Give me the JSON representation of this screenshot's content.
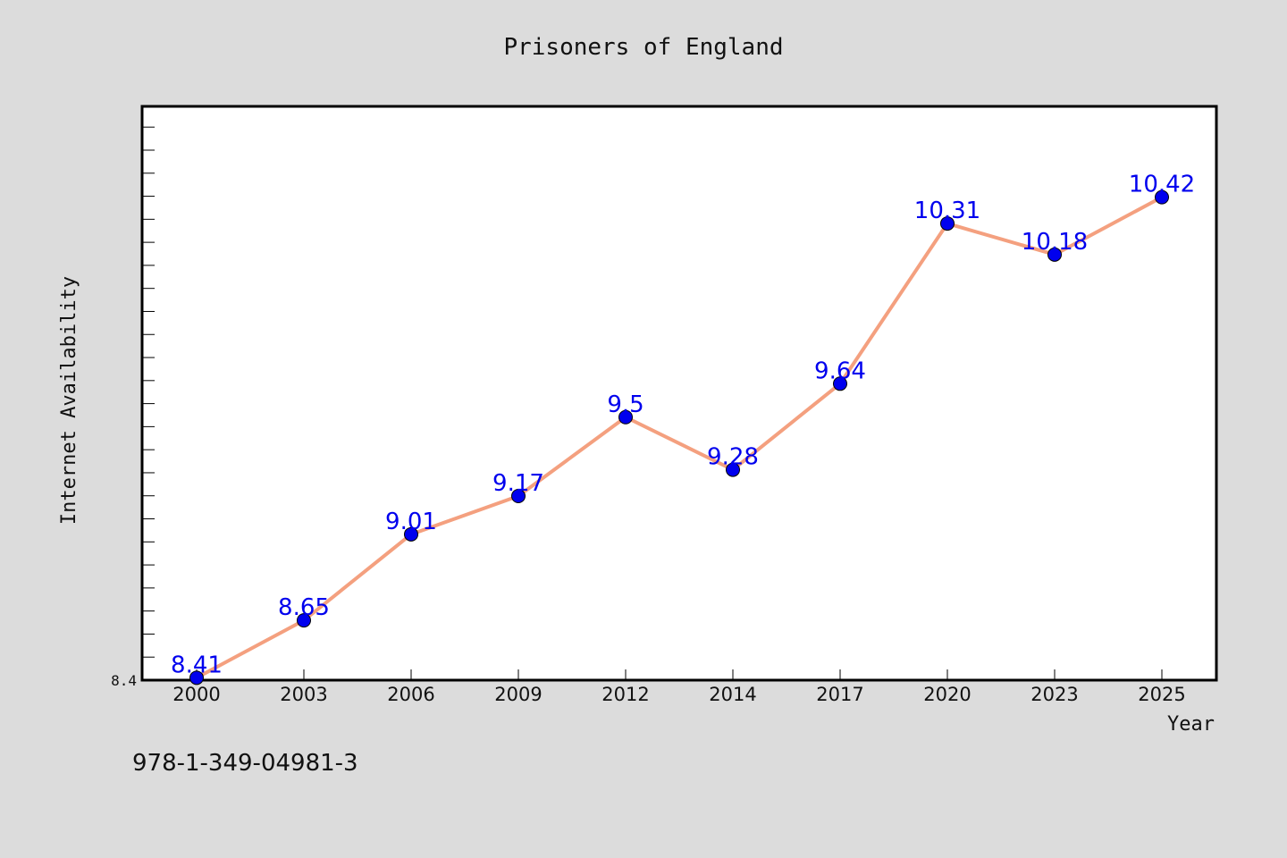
{
  "chart_data": {
    "type": "line",
    "title": "Prisoners of England",
    "xlabel": "Year",
    "ylabel": "Internet Availability",
    "categories": [
      "2000",
      "2003",
      "2006",
      "2009",
      "2012",
      "2014",
      "2017",
      "2020",
      "2023",
      "2025"
    ],
    "series": [
      {
        "values": [
          8.41,
          8.65,
          9.01,
          9.17,
          9.5,
          9.28,
          9.64,
          10.31,
          10.18,
          10.42
        ],
        "data_labels": [
          "8.41",
          "8.65",
          "9.01",
          "9.17",
          "9.5",
          "9.28",
          "9.64",
          "10.31",
          "10.18",
          "10.42"
        ]
      }
    ],
    "ytick_labels": [
      "8.4"
    ],
    "ylim": [
      8.4,
      10.8
    ],
    "grid": false,
    "line_color": "#f4a07f",
    "marker_color": "#0000ee",
    "label_color": "#0000ee"
  },
  "footnote": "978-1-349-04981-3"
}
